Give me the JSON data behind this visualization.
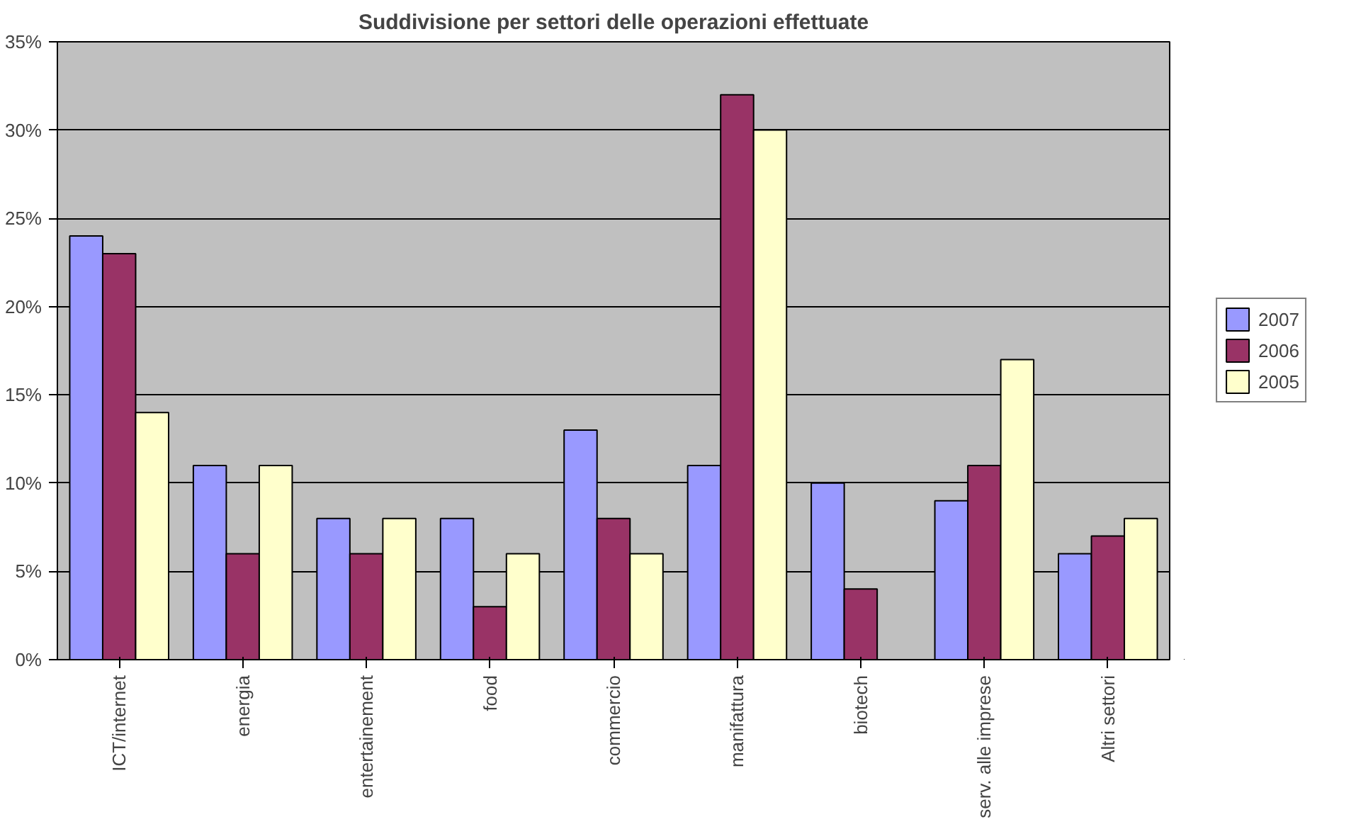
{
  "chart_data": {
    "type": "bar",
    "title": "Suddivisione per settori delle operazioni effettuate",
    "categories": [
      "ICT/internet",
      "energia",
      "entertainement",
      "food",
      "commercio",
      "manifattura",
      "biotech",
      "serv. alle imprese",
      "Altri settori"
    ],
    "series": [
      {
        "name": "2007",
        "color": "#9999ff",
        "values": [
          24,
          11,
          8,
          8,
          13,
          11,
          10,
          9,
          6
        ]
      },
      {
        "name": "2006",
        "color": "#993366",
        "values": [
          23,
          6,
          6,
          3,
          8,
          32,
          4,
          11,
          7
        ]
      },
      {
        "name": "2005",
        "color": "#ffffcc",
        "values": [
          14,
          11,
          8,
          6,
          6,
          30,
          null,
          17,
          8
        ]
      }
    ],
    "ylim": [
      0,
      35
    ],
    "yticks": [
      {
        "value": 0,
        "label": "0%"
      },
      {
        "value": 5,
        "label": "5%"
      },
      {
        "value": 10,
        "label": "10%"
      },
      {
        "value": 15,
        "label": "15%"
      },
      {
        "value": 20,
        "label": "20%"
      },
      {
        "value": 25,
        "label": "25%"
      },
      {
        "value": 30,
        "label": "30%"
      },
      {
        "value": 35,
        "label": "35%"
      }
    ],
    "grid": "y",
    "legend": "right"
  }
}
